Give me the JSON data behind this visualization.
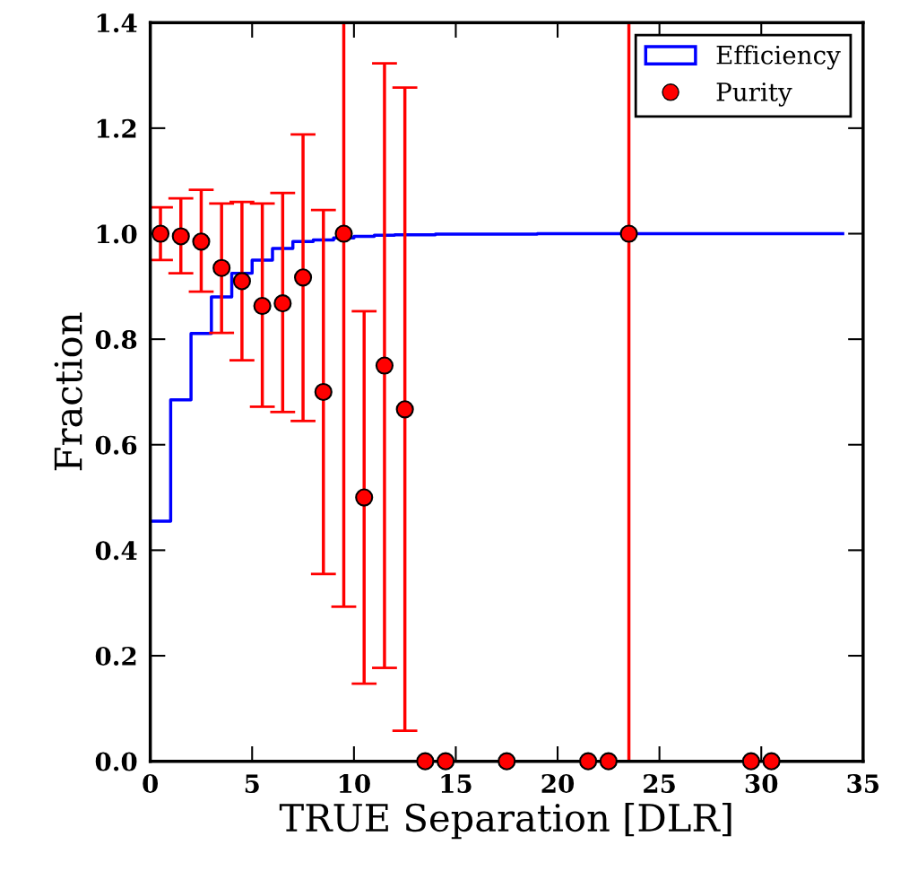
{
  "chart_data": {
    "type": "step",
    "xlabel": "TRUE Separation [DLR]",
    "ylabel": "Fraction",
    "xlim": [
      0,
      35
    ],
    "xticks": [
      0,
      5,
      10,
      15,
      20,
      25,
      30,
      35
    ],
    "ylim": [
      0,
      1.4
    ],
    "yticks": [
      {
        "value": 0,
        "label": "0.0"
      },
      {
        "value": 0.2,
        "label": "0.2"
      },
      {
        "value": 0.4,
        "label": "0.4"
      },
      {
        "value": 0.6,
        "label": "0.6"
      },
      {
        "value": 0.8,
        "label": "0.8"
      },
      {
        "value": 1.0,
        "label": "1.0"
      },
      {
        "value": 1.2,
        "label": "1.2"
      },
      {
        "value": 1.4,
        "label": "1.4"
      }
    ],
    "grid": false,
    "legend": "top right",
    "series": [
      {
        "name": "Efficiency",
        "color": "#0000ff",
        "x": [
          0,
          1,
          2,
          3,
          4,
          5,
          6,
          7,
          8,
          9,
          10,
          11,
          12,
          13,
          14,
          15,
          16,
          17,
          18,
          19,
          20,
          21,
          22,
          23,
          24,
          25,
          26,
          27,
          28,
          29,
          30,
          31,
          32,
          33,
          34
        ],
        "values": [
          0.455,
          0.685,
          0.811,
          0.88,
          0.925,
          0.95,
          0.972,
          0.985,
          0.988,
          0.992,
          0.995,
          0.997,
          0.998,
          0.998,
          0.999,
          0.999,
          0.999,
          0.999,
          0.999,
          1.0,
          1.0,
          1.0,
          1.0,
          1.0,
          1.0,
          1.0,
          1.0,
          1.0,
          1.0,
          1.0,
          1.0,
          1.0,
          1.0,
          1.0,
          1.0
        ]
      },
      {
        "name": "Purity",
        "type": "scatter",
        "color": "#ff0000",
        "marker": "circle",
        "x": [
          0.5,
          1.5,
          2.5,
          3.5,
          4.5,
          5.5,
          6.5,
          7.5,
          8.5,
          9.5,
          10.5,
          11.5,
          12.5,
          13.5,
          14.5,
          17.5,
          21.5,
          22.5,
          23.5,
          29.5,
          30.5
        ],
        "values": [
          1.0,
          0.995,
          0.985,
          0.935,
          0.91,
          0.863,
          0.868,
          0.917,
          0.7,
          1.0,
          0.5,
          0.75,
          0.667,
          0,
          0,
          0,
          0,
          0,
          1.0,
          0,
          0
        ],
        "errors": [
          [
            0.95,
            1.05
          ],
          [
            0.925,
            1.067
          ],
          [
            0.89,
            1.083
          ],
          [
            0.812,
            1.057
          ],
          [
            0.76,
            1.06
          ],
          [
            0.672,
            1.057
          ],
          [
            0.662,
            1.077
          ],
          [
            0.645,
            1.188
          ],
          [
            0.355,
            1.045
          ],
          [
            0.293,
            1.4
          ],
          [
            0.147,
            0.853
          ],
          [
            0.177,
            1.323
          ],
          [
            0.058,
            1.277
          ],
          null,
          null,
          null,
          null,
          null,
          [
            0,
            1.4
          ],
          null,
          null
        ]
      }
    ]
  }
}
